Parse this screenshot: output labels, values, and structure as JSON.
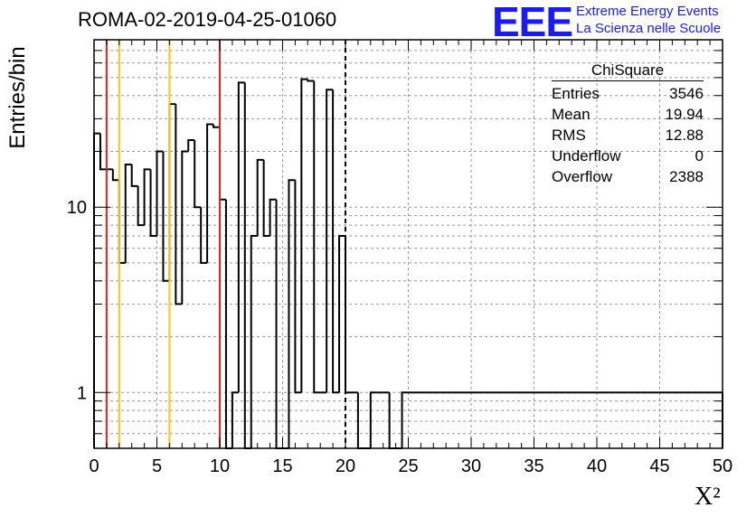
{
  "header": {
    "title": "ROMA-02-2019-04-25-01060",
    "logo": "EEE",
    "logo_line1": "Extreme Energy Events",
    "logo_line2": "La Scienza nelle Scuole"
  },
  "stats": {
    "title": "ChiSquare",
    "rows": [
      {
        "label": "Entries",
        "value": "3546"
      },
      {
        "label": "Mean",
        "value": "19.94"
      },
      {
        "label": "RMS",
        "value": "12.88"
      },
      {
        "label": "Underflow",
        "value": "0"
      },
      {
        "label": "Overflow",
        "value": "2388"
      }
    ]
  },
  "chart_data": {
    "type": "bar",
    "style": "histogram-step",
    "xlabel": "X²",
    "ylabel": "Entries/bin",
    "xlim": [
      0,
      50
    ],
    "ylim": [
      0.5,
      80
    ],
    "ylog": true,
    "bin_width": 0.5,
    "xticks": [
      "0",
      "5",
      "10",
      "15",
      "20",
      "25",
      "30",
      "35",
      "40",
      "45",
      "50"
    ],
    "yticks": [
      "1",
      "10"
    ],
    "grid": true,
    "values": [
      25,
      16,
      16,
      14,
      5,
      17,
      13,
      8,
      16,
      7,
      20,
      4,
      36,
      3,
      20,
      23,
      10,
      5,
      28,
      27,
      11,
      0,
      1,
      47,
      0,
      7,
      18,
      7,
      11,
      0,
      0,
      14,
      1,
      49,
      48,
      1,
      1,
      43,
      1,
      7,
      1,
      1,
      0,
      0,
      1,
      1,
      1,
      0,
      0,
      1,
      1,
      1,
      1,
      1,
      1,
      1,
      1,
      1,
      1,
      1,
      1,
      1,
      1,
      1,
      1,
      1,
      1,
      1,
      1,
      1,
      1,
      1,
      1,
      1,
      1,
      1,
      1,
      1,
      1,
      1,
      1,
      1,
      1,
      1,
      1,
      1,
      1,
      1,
      1,
      1,
      1,
      1,
      1,
      1,
      1,
      1,
      1,
      1,
      1,
      1
    ],
    "markers": [
      {
        "x": 1,
        "color": "#e8231e",
        "style": "solid"
      },
      {
        "x": 2,
        "color": "#f5c518",
        "style": "solid"
      },
      {
        "x": 6,
        "color": "#f5c518",
        "style": "solid"
      },
      {
        "x": 10,
        "color": "#e8231e",
        "style": "solid"
      },
      {
        "x": 20,
        "color": "#000000",
        "style": "dashed"
      }
    ]
  }
}
